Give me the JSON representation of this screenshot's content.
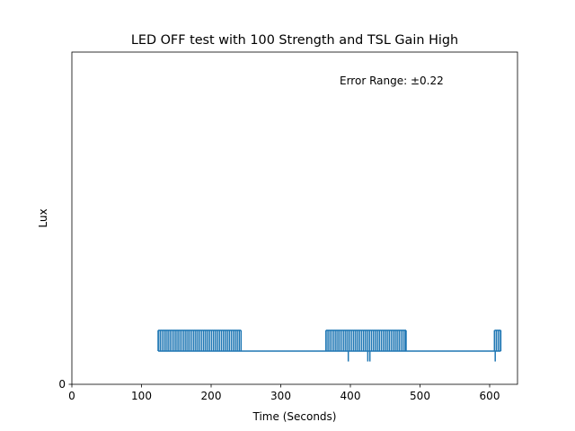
{
  "chart_data": {
    "type": "line",
    "title": "LED OFF test with 100 Strength and TSL Gain High",
    "xlabel": "Time (Seconds)",
    "ylabel": "Lux",
    "annotation": "Error Range: ±0.22",
    "xlim": [
      0,
      640
    ],
    "ylim": [
      0,
      1.6
    ],
    "xticks": [
      0,
      100,
      200,
      300,
      400,
      500,
      600
    ],
    "yticks": [
      0
    ],
    "grid": false,
    "series": [
      {
        "color": "#1f77b4",
        "baseline": 0.16,
        "high": 0.26,
        "low": 0.11,
        "x_start": 124,
        "x_end": 616,
        "high_segments": [
          [
            124,
            243
          ],
          [
            365,
            480
          ],
          [
            607,
            616
          ]
        ],
        "low_dips": [
          397,
          425,
          428,
          608
        ]
      }
    ]
  }
}
